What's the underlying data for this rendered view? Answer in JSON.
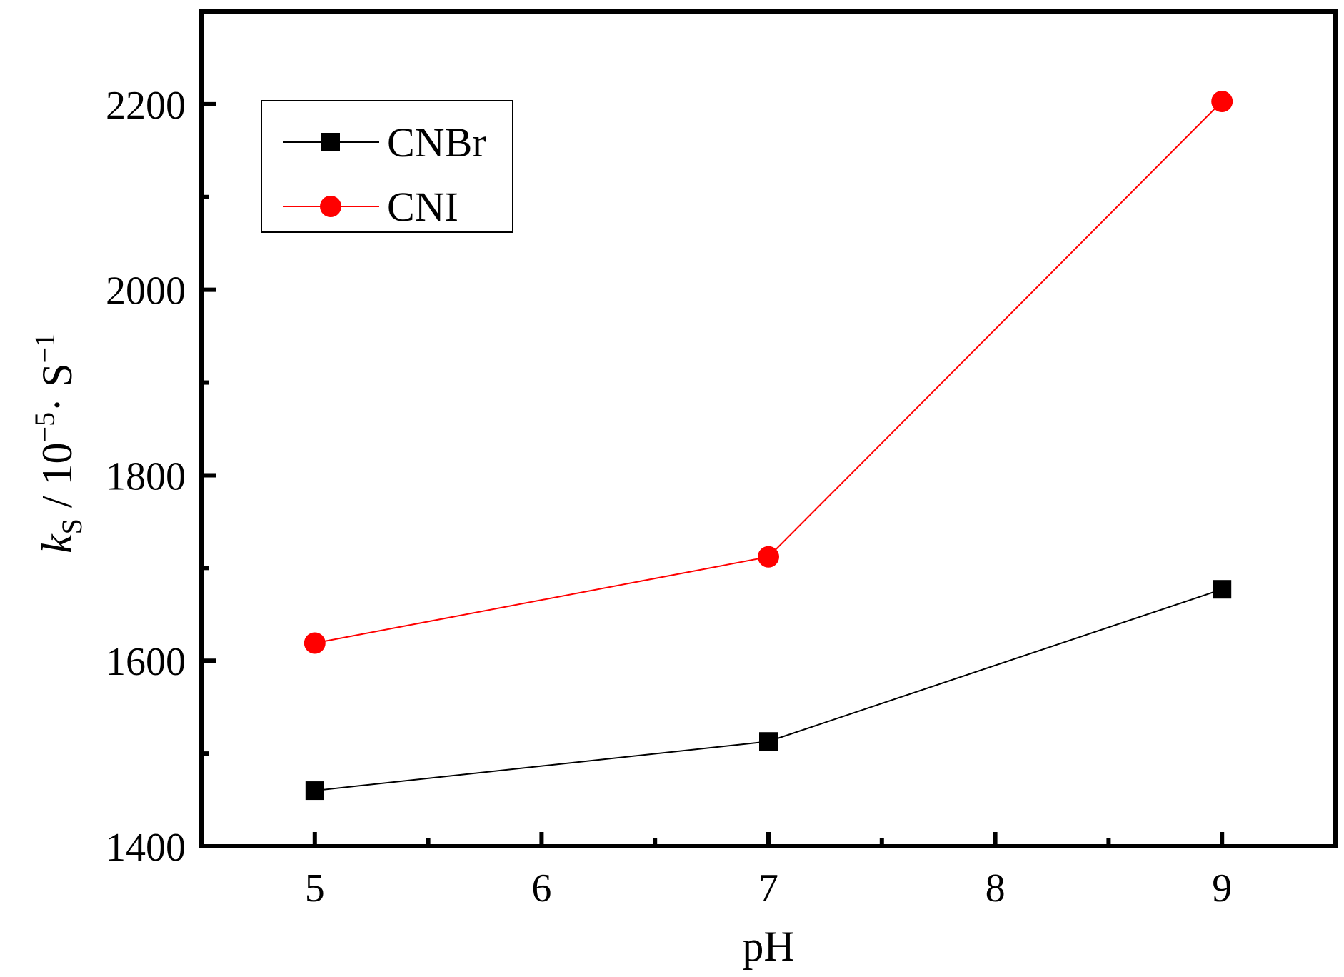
{
  "chart_data": {
    "type": "line",
    "title": "",
    "xlabel": "pH",
    "ylabel": {
      "k": "k",
      "sub": "S",
      "mid": " / 10",
      "sup1": "−5",
      "dot": "·",
      "s": " S",
      "sup2": "−1"
    },
    "xlim": [
      4.5,
      9.5
    ],
    "ylim": [
      1400,
      2300
    ],
    "x_ticks": [
      "5",
      "6",
      "7",
      "8",
      "9"
    ],
    "y_ticks": [
      "1400",
      "1600",
      "1800",
      "2000",
      "2200"
    ],
    "grid": false,
    "legend_position": "top-left",
    "series": [
      {
        "name": "CNBr",
        "color": "#000000",
        "marker": "square",
        "x": [
          5,
          7,
          9
        ],
        "y": [
          1460,
          1513,
          1677
        ]
      },
      {
        "name": "CNI",
        "color": "#ff0000",
        "marker": "circle",
        "x": [
          5,
          7,
          9
        ],
        "y": [
          1619,
          1712,
          2203
        ]
      }
    ]
  }
}
